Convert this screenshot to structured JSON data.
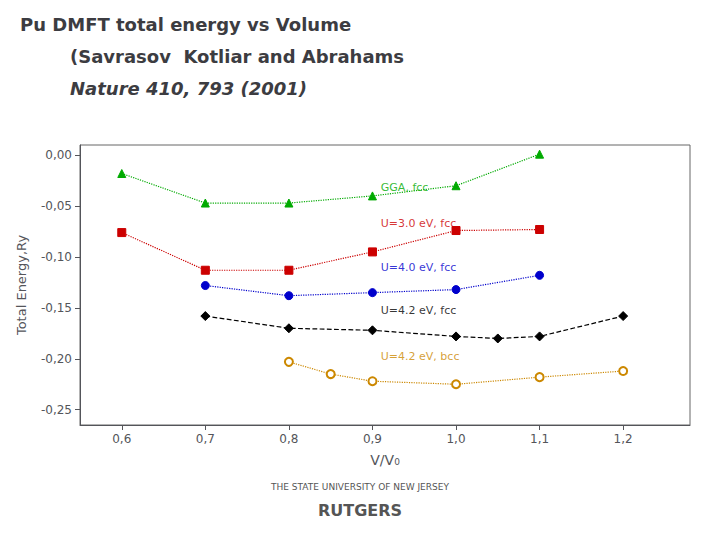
{
  "chart_data": {
    "type": "line",
    "title": "Pu DMFT total energy vs Volume",
    "subtitle": [
      "(Savrasov  Kotliar and Abrahams",
      "Nature 410, 793 (2001)"
    ],
    "x_label": "V/V₀",
    "y_label": "Total Energy,Ry",
    "xlim": [
      0.55,
      1.28
    ],
    "ylim": [
      -0.265,
      0.01
    ],
    "xticks": [
      {
        "value": 0.6,
        "label": "0,6"
      },
      {
        "value": 0.7,
        "label": "0,7"
      },
      {
        "value": 0.8,
        "label": "0,8"
      },
      {
        "value": 0.9,
        "label": "0,9"
      },
      {
        "value": 1.0,
        "label": "1,0"
      },
      {
        "value": 1.1,
        "label": "1,1"
      },
      {
        "value": 1.2,
        "label": "1,2"
      }
    ],
    "yticks": [
      {
        "value": -0.25,
        "label": "-0,25"
      },
      {
        "value": -0.2,
        "label": "-0,20"
      },
      {
        "value": -0.15,
        "label": "-0,15"
      },
      {
        "value": -0.1,
        "label": "-0,10"
      },
      {
        "value": -0.05,
        "label": "-0,05"
      },
      {
        "value": 0.0,
        "label": "0,00"
      }
    ],
    "grid": false,
    "series": [
      {
        "color": "#00aa00",
        "marker": "triangle",
        "line_style": "dotted",
        "x": [
          0.6,
          0.7,
          0.8,
          0.9,
          1.0,
          1.1
        ],
        "values": [
          -0.018,
          -0.047,
          -0.047,
          -0.04,
          -0.03,
          0.001
        ]
      },
      {
        "color": "#cc0000",
        "marker": "square",
        "line_style": "dotted",
        "x": [
          0.6,
          0.7,
          0.8,
          0.9,
          1.0,
          1.1
        ],
        "values": [
          -0.076,
          -0.113,
          -0.113,
          -0.095,
          -0.074,
          -0.073
        ]
      },
      {
        "color": "#0000cc",
        "marker": "circle",
        "line_style": "dotted",
        "x": [
          0.7,
          0.8,
          0.9,
          1.0,
          1.1
        ],
        "values": [
          -0.128,
          -0.138,
          -0.135,
          -0.132,
          -0.118
        ]
      },
      {
        "color": "#000000",
        "marker": "diamond",
        "line_style": "dashed",
        "x": [
          0.7,
          0.8,
          0.9,
          1.0,
          1.05,
          1.1,
          1.2
        ],
        "values": [
          -0.158,
          -0.17,
          -0.172,
          -0.178,
          -0.18,
          -0.178,
          -0.158
        ]
      },
      {
        "color": "#cc8800",
        "marker": "open_circle",
        "line_style": "dotted",
        "x": [
          0.8,
          0.85,
          0.9,
          1.0,
          1.1,
          1.2
        ],
        "values": [
          -0.203,
          -0.215,
          -0.222,
          -0.225,
          -0.218,
          -0.212
        ]
      }
    ],
    "annotations": [
      {
        "text": "GGA, fcc",
        "x": 0.91,
        "y": -0.032,
        "color": "#00aa00"
      },
      {
        "text": "U=3.0 eV, fcc",
        "x": 0.91,
        "y": -0.067,
        "color": "#cc0000"
      },
      {
        "text": "U=4.0 eV, fcc",
        "x": 0.91,
        "y": -0.11,
        "color": "#0000cc"
      },
      {
        "text": "U=4.2 eV, fcc",
        "x": 0.91,
        "y": -0.153,
        "color": "#000000"
      },
      {
        "text": "U=4.2 eV, bcc",
        "x": 0.91,
        "y": -0.198,
        "color": "#cc8800"
      },
      {
        "text": "THE STATE UNIVERSITY OF NEW JERSEY"
      },
      {
        "text": "RUTGERS"
      }
    ]
  }
}
